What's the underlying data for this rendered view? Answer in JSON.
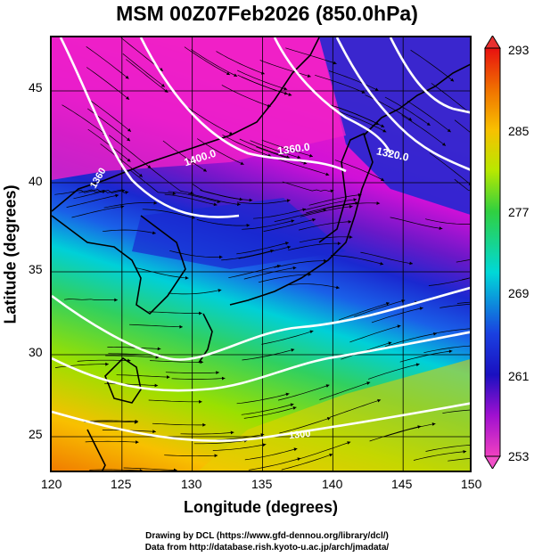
{
  "title": "MSM 00Z07Feb2026 (850.0hPa)",
  "xaxis": {
    "label": "Longitude (degrees)",
    "ticks": [
      "120",
      "125",
      "130",
      "135",
      "140",
      "145",
      "150"
    ]
  },
  "yaxis": {
    "label": "Latitude  (degrees)",
    "ticks": [
      "25",
      "30",
      "35",
      "40",
      "45"
    ]
  },
  "contours": [
    {
      "label": "1400.0"
    },
    {
      "label": "1360.0"
    },
    {
      "label": "1320.0"
    },
    {
      "label": "1360"
    },
    {
      "label": "1300"
    }
  ],
  "colorbar": {
    "ticks": [
      "293",
      "285",
      "277",
      "269",
      "261",
      "253"
    ]
  },
  "credits": {
    "line1": "Drawing by DCL (https://www.gfd-dennou.org/library/dcl/)",
    "line2": "Data from http://database.rish.kyoto-u.ac.jp/arch/jmadata/"
  },
  "colors": {
    "warm": "#f08a00",
    "green": "#5fd400",
    "cyan": "#00d8c8",
    "blue": "#1a2bd4",
    "magenta": "#e800d0"
  }
}
